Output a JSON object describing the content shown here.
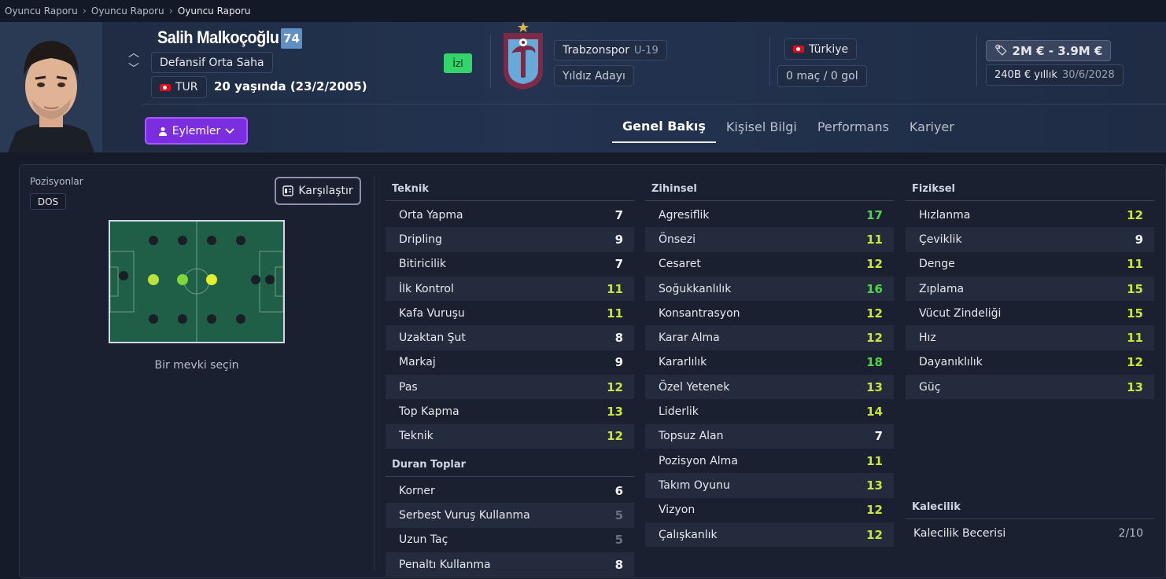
{
  "breadcrumb": [
    "Oyuncu Raporu",
    "Oyuncu Raporu",
    "Oyuncu Raporu"
  ],
  "player": {
    "name": "Salih Malkoçoğlu",
    "rating": "74",
    "position": "Defansif Orta Saha",
    "nationality_code": "TUR",
    "age_text": "20 yaşında (23/2/2005)",
    "watch_label": "İzl"
  },
  "club": {
    "name": "Trabzonspor",
    "team": "U-19",
    "status": "Yıldız Adayı"
  },
  "national": {
    "country": "Türkiye",
    "caps": "0 maç / 0 gol"
  },
  "contract": {
    "value": "2M € - 3.9M €",
    "wage": "240B € yıllık",
    "expiry": "30/6/2028"
  },
  "actions_label": "Eylemler",
  "tabs": [
    {
      "label": "Genel Bakış",
      "active": true
    },
    {
      "label": "Kişisel Bilgi",
      "active": false
    },
    {
      "label": "Performans",
      "active": false
    },
    {
      "label": "Kariyer",
      "active": false
    }
  ],
  "positions": {
    "title": "Pozisyonlar",
    "badge": "DOS",
    "compare_label": "Karşılaştır",
    "hint": "Bir mevki seçin"
  },
  "attributes": {
    "teknik": {
      "title": "Teknik",
      "items": [
        {
          "name": "Orta Yapma",
          "value": "7",
          "tier": "white"
        },
        {
          "name": "Dripling",
          "value": "9",
          "tier": "white"
        },
        {
          "name": "Bitiricilik",
          "value": "7",
          "tier": "white"
        },
        {
          "name": "İlk Kontrol",
          "value": "11",
          "tier": "yellow"
        },
        {
          "name": "Kafa Vuruşu",
          "value": "11",
          "tier": "yellow"
        },
        {
          "name": "Uzaktan Şut",
          "value": "8",
          "tier": "white"
        },
        {
          "name": "Markaj",
          "value": "9",
          "tier": "white"
        },
        {
          "name": "Pas",
          "value": "12",
          "tier": "yellow"
        },
        {
          "name": "Top Kapma",
          "value": "13",
          "tier": "yellow"
        },
        {
          "name": "Teknik",
          "value": "12",
          "tier": "yellow"
        }
      ]
    },
    "duran": {
      "title": "Duran Toplar",
      "items": [
        {
          "name": "Korner",
          "value": "6",
          "tier": "white"
        },
        {
          "name": "Serbest Vuruş Kullanma",
          "value": "5",
          "tier": "grey"
        },
        {
          "name": "Uzun Taç",
          "value": "5",
          "tier": "grey"
        },
        {
          "name": "Penaltı Kullanma",
          "value": "8",
          "tier": "white"
        }
      ]
    },
    "zihinsel": {
      "title": "Zihinsel",
      "items": [
        {
          "name": "Agresiflik",
          "value": "17",
          "tier": "green"
        },
        {
          "name": "Önsezi",
          "value": "11",
          "tier": "yellow"
        },
        {
          "name": "Cesaret",
          "value": "12",
          "tier": "yellow"
        },
        {
          "name": "Soğukkanlılık",
          "value": "16",
          "tier": "green"
        },
        {
          "name": "Konsantrasyon",
          "value": "12",
          "tier": "yellow"
        },
        {
          "name": "Karar Alma",
          "value": "12",
          "tier": "yellow"
        },
        {
          "name": "Kararlılık",
          "value": "18",
          "tier": "green"
        },
        {
          "name": "Özel Yetenek",
          "value": "13",
          "tier": "yellow"
        },
        {
          "name": "Liderlik",
          "value": "14",
          "tier": "yellow"
        },
        {
          "name": "Topsuz Alan",
          "value": "7",
          "tier": "white"
        },
        {
          "name": "Pozisyon Alma",
          "value": "11",
          "tier": "yellow"
        },
        {
          "name": "Takım Oyunu",
          "value": "13",
          "tier": "yellow"
        },
        {
          "name": "Vizyon",
          "value": "12",
          "tier": "yellow"
        },
        {
          "name": "Çalışkanlık",
          "value": "12",
          "tier": "yellow"
        }
      ]
    },
    "fiziksel": {
      "title": "Fiziksel",
      "items": [
        {
          "name": "Hızlanma",
          "value": "12",
          "tier": "yellow"
        },
        {
          "name": "Çeviklik",
          "value": "9",
          "tier": "white"
        },
        {
          "name": "Denge",
          "value": "11",
          "tier": "yellow"
        },
        {
          "name": "Zıplama",
          "value": "15",
          "tier": "yellow"
        },
        {
          "name": "Vücut Zindeliği",
          "value": "15",
          "tier": "yellow"
        },
        {
          "name": "Hız",
          "value": "11",
          "tier": "yellow"
        },
        {
          "name": "Dayanıklılık",
          "value": "12",
          "tier": "yellow"
        },
        {
          "name": "Güç",
          "value": "13",
          "tier": "yellow"
        }
      ]
    },
    "kalecilik": {
      "title": "Kalecilik",
      "items": [
        {
          "name": "Kalecilik Becerisi",
          "value": "2/10",
          "tier": "plain"
        }
      ]
    }
  },
  "colors": {
    "accent_purple": "#7b2ee0",
    "value_green": "#4fd843",
    "value_yellow": "#c8e833",
    "value_grey": "#6b7183",
    "watch_green": "#33d46a",
    "rating_blue": "#5f8fc4"
  }
}
